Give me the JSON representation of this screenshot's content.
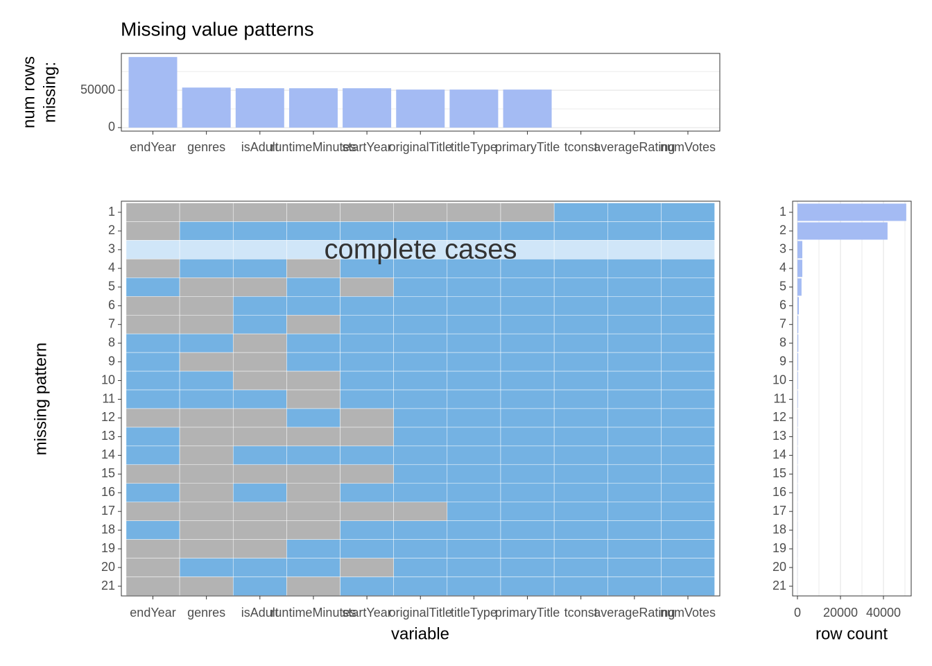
{
  "chart_data": [
    {
      "type": "bar",
      "title": "Missing value patterns",
      "ylabel": [
        "num rows",
        "missing:"
      ],
      "categories": [
        "endYear",
        "genres",
        "isAdult",
        "runtimeMinutes",
        "startYear",
        "originalTitle",
        "titleType",
        "primaryTitle",
        "tconst",
        "averageRating",
        "numVotes"
      ],
      "values": [
        94500,
        53600,
        52700,
        52700,
        52700,
        50900,
        50900,
        50900,
        0,
        0,
        0
      ],
      "color": "#a4bbf3",
      "ylim": [
        -4700,
        99300
      ],
      "yticks": [
        0,
        50000
      ],
      "minor_yticks": [
        25000,
        75000
      ],
      "grid": true
    },
    {
      "type": "tile",
      "xlabel": "variable",
      "ylabel": "missing pattern",
      "annotation": "complete cases",
      "categories": [
        "endYear",
        "genres",
        "isAdult",
        "runtimeMinutes",
        "startYear",
        "originalTitle",
        "titleType",
        "primaryTitle",
        "tconst",
        "averageRating",
        "numVotes"
      ],
      "rows": [
        1,
        2,
        3,
        4,
        5,
        6,
        7,
        8,
        9,
        10,
        11,
        12,
        13,
        14,
        15,
        16,
        17,
        18,
        19,
        20,
        21
      ],
      "matrix": [
        [
          1,
          1,
          1,
          1,
          1,
          1,
          1,
          1,
          0,
          0,
          0
        ],
        [
          1,
          0,
          0,
          0,
          0,
          0,
          0,
          0,
          0,
          0,
          0
        ],
        [
          0,
          0,
          0,
          0,
          0,
          0,
          0,
          0,
          0,
          0,
          0
        ],
        [
          1,
          0,
          0,
          1,
          0,
          0,
          0,
          0,
          0,
          0,
          0
        ],
        [
          0,
          1,
          1,
          0,
          1,
          0,
          0,
          0,
          0,
          0,
          0
        ],
        [
          1,
          1,
          0,
          0,
          0,
          0,
          0,
          0,
          0,
          0,
          0
        ],
        [
          1,
          1,
          0,
          1,
          0,
          0,
          0,
          0,
          0,
          0,
          0
        ],
        [
          0,
          0,
          1,
          0,
          0,
          0,
          0,
          0,
          0,
          0,
          0
        ],
        [
          0,
          1,
          1,
          0,
          0,
          0,
          0,
          0,
          0,
          0,
          0
        ],
        [
          0,
          0,
          1,
          1,
          0,
          0,
          0,
          0,
          0,
          0,
          0
        ],
        [
          0,
          0,
          0,
          1,
          0,
          0,
          0,
          0,
          0,
          0,
          0
        ],
        [
          1,
          1,
          1,
          0,
          1,
          0,
          0,
          0,
          0,
          0,
          0
        ],
        [
          0,
          1,
          1,
          1,
          1,
          0,
          0,
          0,
          0,
          0,
          0
        ],
        [
          0,
          1,
          0,
          0,
          0,
          0,
          0,
          0,
          0,
          0,
          0
        ],
        [
          1,
          1,
          1,
          1,
          1,
          0,
          0,
          0,
          0,
          0,
          0
        ],
        [
          0,
          1,
          0,
          1,
          0,
          0,
          0,
          0,
          0,
          0,
          0
        ],
        [
          1,
          1,
          1,
          1,
          1,
          1,
          0,
          0,
          0,
          0,
          0
        ],
        [
          0,
          1,
          1,
          1,
          0,
          0,
          0,
          0,
          0,
          0,
          0
        ],
        [
          1,
          1,
          1,
          0,
          0,
          0,
          0,
          0,
          0,
          0,
          0
        ],
        [
          1,
          0,
          0,
          0,
          1,
          0,
          0,
          0,
          0,
          0,
          0
        ],
        [
          1,
          1,
          0,
          1,
          0,
          0,
          0,
          0,
          0,
          0,
          0
        ]
      ],
      "colors": {
        "missing": "#b3b3b3",
        "present": "#74b2e3",
        "complete": "#d0e6f8"
      }
    },
    {
      "type": "barh",
      "xlabel": "row count",
      "rows": [
        1,
        2,
        3,
        4,
        5,
        6,
        7,
        8,
        9,
        10,
        11,
        12,
        13,
        14,
        15,
        16,
        17,
        18,
        19,
        20,
        21
      ],
      "values": [
        50600,
        41900,
        2260,
        2260,
        1900,
        650,
        400,
        400,
        350,
        250,
        200,
        150,
        120,
        100,
        90,
        80,
        70,
        60,
        50,
        40,
        30
      ],
      "color": "#a4bbf3",
      "xlim": [
        -2250,
        52900
      ],
      "xticks": [
        0,
        20000,
        40000
      ],
      "minor_xticks": [
        10000,
        30000,
        50000
      ],
      "grid": true
    }
  ]
}
